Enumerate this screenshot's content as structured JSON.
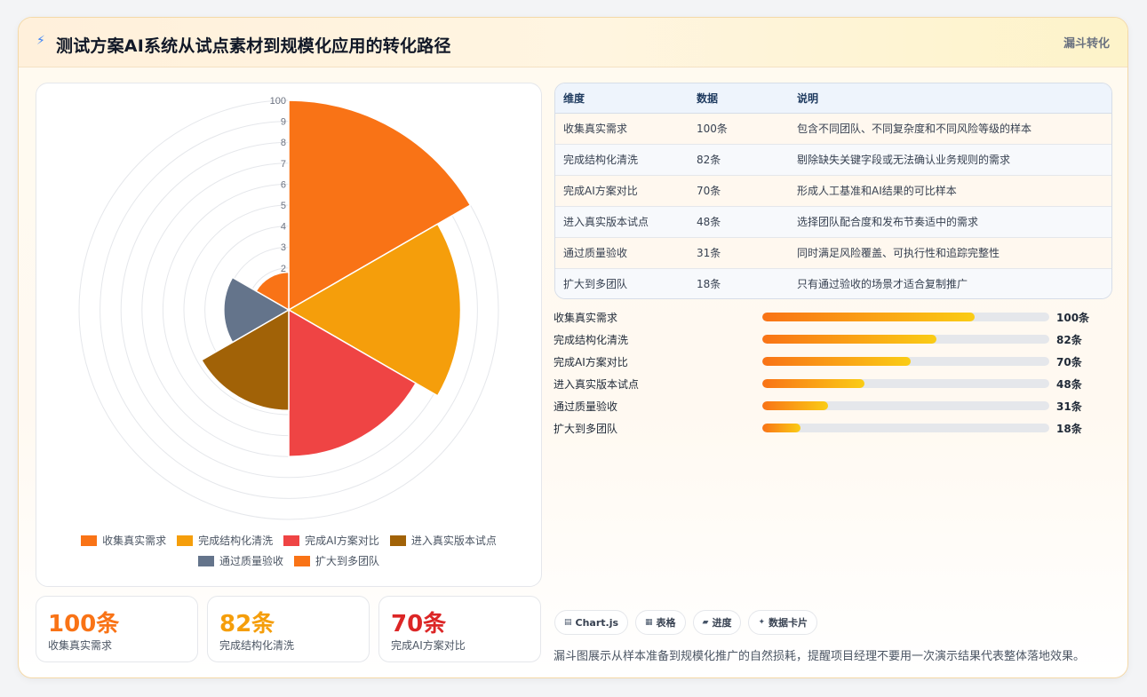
{
  "header": {
    "icon": "lightning-icon",
    "title": "测试方案AI系统从试点素材到规模化应用的转化路径",
    "tag": "漏斗转化"
  },
  "chart_data": {
    "type": "polarArea",
    "categories": [
      "收集真实需求",
      "完成结构化清洗",
      "完成AI方案对比",
      "进入真实版本试点",
      "通过质量验收",
      "扩大到多团队"
    ],
    "values": [
      100,
      82,
      70,
      48,
      31,
      18
    ],
    "colors": [
      "#f97316",
      "#f59e0b",
      "#ef4444",
      "#a16207",
      "#64748b",
      "#f97316"
    ],
    "r_ticks": [
      "2",
      "3",
      "4",
      "5",
      "6",
      "7",
      "8",
      "9",
      "100"
    ],
    "rmax": 100
  },
  "stats": [
    {
      "value": "100条",
      "label": "收集真实需求",
      "color": "#f97316"
    },
    {
      "value": "82条",
      "label": "完成结构化清洗",
      "color": "#f59e0b"
    },
    {
      "value": "70条",
      "label": "完成AI方案对比",
      "color": "#dc2626"
    }
  ],
  "table": {
    "headers": [
      "维度",
      "数据",
      "说明"
    ],
    "rows": [
      [
        "收集真实需求",
        "100条",
        "包含不同团队、不同复杂度和不同风险等级的样本"
      ],
      [
        "完成结构化清洗",
        "82条",
        "剔除缺失关键字段或无法确认业务规则的需求"
      ],
      [
        "完成AI方案对比",
        "70条",
        "形成人工基准和AI结果的可比样本"
      ],
      [
        "进入真实版本试点",
        "48条",
        "选择团队配合度和发布节奏适中的需求"
      ],
      [
        "通过质量验收",
        "31条",
        "同时满足风险覆盖、可执行性和追踪完整性"
      ],
      [
        "扩大到多团队",
        "18条",
        "只有通过验收的场景才适合复制推广"
      ]
    ]
  },
  "progress": [
    {
      "label": "收集真实需求",
      "value": 100,
      "text": "100条"
    },
    {
      "label": "完成结构化清洗",
      "value": 82,
      "text": "82条"
    },
    {
      "label": "完成AI方案对比",
      "value": 70,
      "text": "70条"
    },
    {
      "label": "进入真实版本试点",
      "value": 48,
      "text": "48条"
    },
    {
      "label": "通过质量验收",
      "value": 31,
      "text": "31条"
    },
    {
      "label": "扩大到多团队",
      "value": 18,
      "text": "18条"
    }
  ],
  "chips": [
    {
      "icon": "chart-icon",
      "glyph": "▤",
      "label": "Chart.js"
    },
    {
      "icon": "table-icon",
      "glyph": "▦",
      "label": "表格"
    },
    {
      "icon": "progress-icon",
      "glyph": "▰",
      "label": "进度"
    },
    {
      "icon": "card-icon",
      "glyph": "✦",
      "label": "数据卡片"
    }
  ],
  "footnote": "漏斗图展示从样本准备到规模化推广的自然损耗，提醒项目经理不要用一次演示结果代表整体落地效果。"
}
